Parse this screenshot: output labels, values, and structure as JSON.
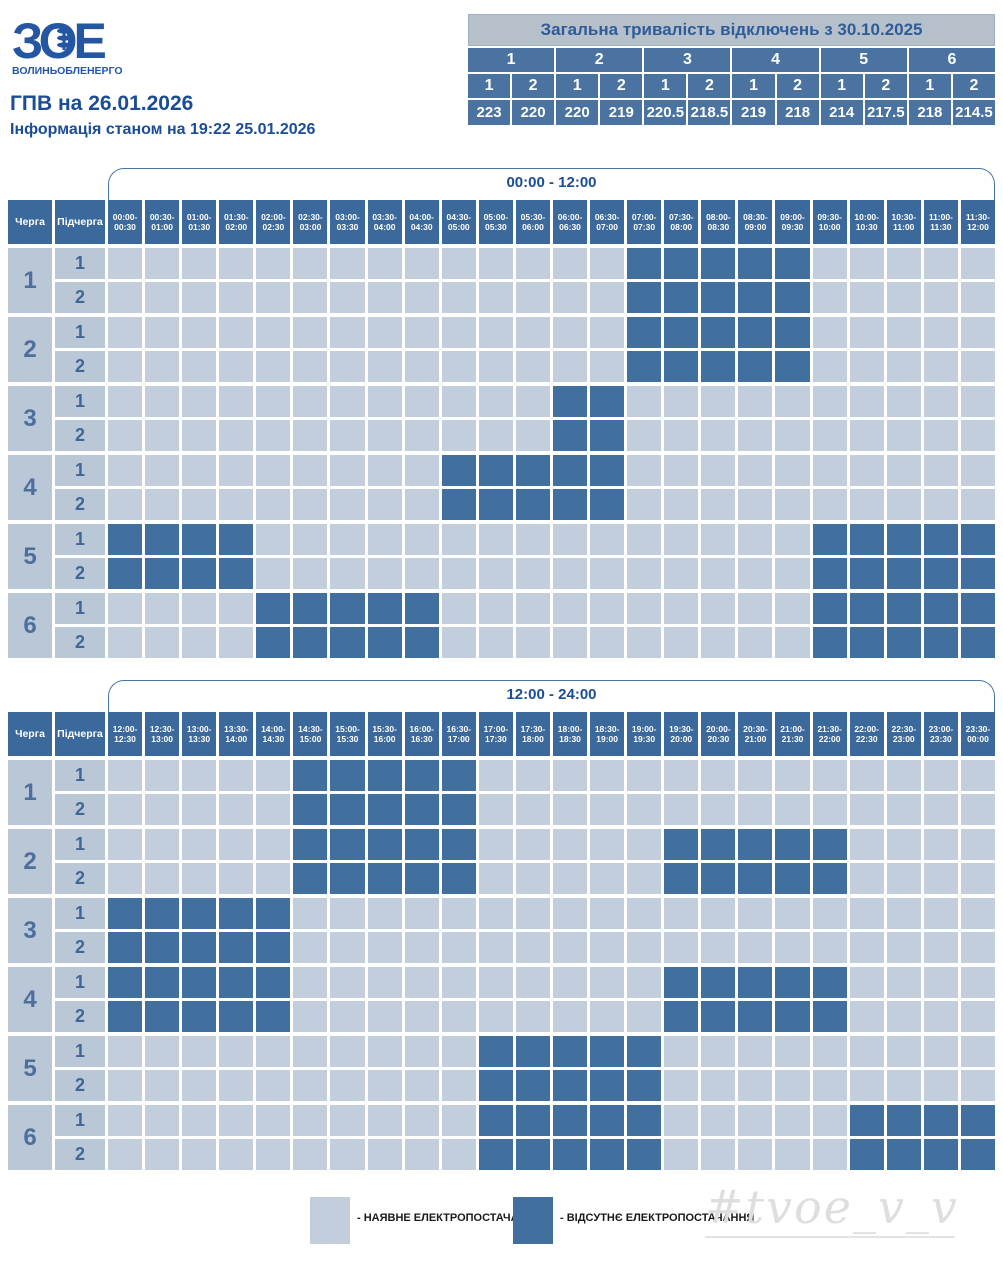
{
  "logo": {
    "brand": "ЗОЕ",
    "company": "ВОЛИНЬОБЛЕНЕРГО"
  },
  "header": {
    "title": "ГПВ на 26.01.2026",
    "subtitle": "Інформація станом на 19:22 25.01.2026"
  },
  "summary": {
    "title": "Загальна тривалість відключень з 30.10.2025",
    "groups": [
      {
        "label": "1",
        "subs": [
          {
            "label": "1",
            "value": "223"
          },
          {
            "label": "2",
            "value": "220"
          }
        ]
      },
      {
        "label": "2",
        "subs": [
          {
            "label": "1",
            "value": "220"
          },
          {
            "label": "2",
            "value": "219"
          }
        ]
      },
      {
        "label": "3",
        "subs": [
          {
            "label": "1",
            "value": "220.5"
          },
          {
            "label": "2",
            "value": "218.5"
          }
        ]
      },
      {
        "label": "4",
        "subs": [
          {
            "label": "1",
            "value": "219"
          },
          {
            "label": "2",
            "value": "218"
          }
        ]
      },
      {
        "label": "5",
        "subs": [
          {
            "label": "1",
            "value": "214"
          },
          {
            "label": "2",
            "value": "217.5"
          }
        ]
      },
      {
        "label": "6",
        "subs": [
          {
            "label": "1",
            "value": "218"
          },
          {
            "label": "2",
            "value": "214.5"
          }
        ]
      }
    ]
  },
  "schedule": {
    "queue_header": "Черга",
    "subqueue_header": "Підчерга",
    "tables": [
      {
        "title": "00:00 - 12:00",
        "slots": [
          "00:00-00:30",
          "00:30-01:00",
          "01:00-01:30",
          "01:30-02:00",
          "02:00-02:30",
          "02:30-03:00",
          "03:00-03:30",
          "03:30-04:00",
          "04:00-04:30",
          "04:30-05:00",
          "05:00-05:30",
          "05:30-06:00",
          "06:00-06:30",
          "06:30-07:00",
          "07:00-07:30",
          "07:30-08:00",
          "08:00-08:30",
          "08:30-09:00",
          "09:00-09:30",
          "09:30-10:00",
          "10:00-10:30",
          "10:30-11:00",
          "11:00-11:30",
          "11:30-12:00"
        ],
        "queues": [
          {
            "label": "1",
            "rows": [
              {
                "label": "1",
                "off": [
                  [
                    14,
                    18
                  ]
                ]
              },
              {
                "label": "2",
                "off": [
                  [
                    14,
                    18
                  ]
                ]
              }
            ]
          },
          {
            "label": "2",
            "rows": [
              {
                "label": "1",
                "off": [
                  [
                    14,
                    18
                  ]
                ]
              },
              {
                "label": "2",
                "off": [
                  [
                    14,
                    18
                  ]
                ]
              }
            ]
          },
          {
            "label": "3",
            "rows": [
              {
                "label": "1",
                "off": [
                  [
                    12,
                    13
                  ]
                ]
              },
              {
                "label": "2",
                "off": [
                  [
                    12,
                    13
                  ]
                ]
              }
            ]
          },
          {
            "label": "4",
            "rows": [
              {
                "label": "1",
                "off": [
                  [
                    9,
                    13
                  ]
                ]
              },
              {
                "label": "2",
                "off": [
                  [
                    9,
                    13
                  ]
                ]
              }
            ]
          },
          {
            "label": "5",
            "rows": [
              {
                "label": "1",
                "off": [
                  [
                    0,
                    3
                  ],
                  [
                    19,
                    23
                  ]
                ]
              },
              {
                "label": "2",
                "off": [
                  [
                    0,
                    3
                  ],
                  [
                    19,
                    23
                  ]
                ]
              }
            ]
          },
          {
            "label": "6",
            "rows": [
              {
                "label": "1",
                "off": [
                  [
                    4,
                    8
                  ],
                  [
                    19,
                    23
                  ]
                ]
              },
              {
                "label": "2",
                "off": [
                  [
                    4,
                    8
                  ],
                  [
                    19,
                    23
                  ]
                ]
              }
            ]
          }
        ]
      },
      {
        "title": "12:00 - 24:00",
        "slots": [
          "12:00-12:30",
          "12:30-13:00",
          "13:00-13:30",
          "13:30-14:00",
          "14:00-14:30",
          "14:30-15:00",
          "15:00-15:30",
          "15:30-16:00",
          "16:00-16:30",
          "16:30-17:00",
          "17:00-17:30",
          "17:30-18:00",
          "18:00-18:30",
          "18:30-19:00",
          "19:00-19:30",
          "19:30-20:00",
          "20:00-20:30",
          "20:30-21:00",
          "21:00-21:30",
          "21:30-22:00",
          "22:00-22:30",
          "22:30-23:00",
          "23:00-23:30",
          "23:30-00:00"
        ],
        "queues": [
          {
            "label": "1",
            "rows": [
              {
                "label": "1",
                "off": [
                  [
                    5,
                    9
                  ]
                ]
              },
              {
                "label": "2",
                "off": [
                  [
                    5,
                    9
                  ]
                ]
              }
            ]
          },
          {
            "label": "2",
            "rows": [
              {
                "label": "1",
                "off": [
                  [
                    5,
                    9
                  ],
                  [
                    15,
                    19
                  ]
                ]
              },
              {
                "label": "2",
                "off": [
                  [
                    5,
                    9
                  ],
                  [
                    15,
                    19
                  ]
                ]
              }
            ]
          },
          {
            "label": "3",
            "rows": [
              {
                "label": "1",
                "off": [
                  [
                    0,
                    4
                  ]
                ]
              },
              {
                "label": "2",
                "off": [
                  [
                    0,
                    4
                  ]
                ]
              }
            ]
          },
          {
            "label": "4",
            "rows": [
              {
                "label": "1",
                "off": [
                  [
                    0,
                    4
                  ],
                  [
                    15,
                    19
                  ]
                ]
              },
              {
                "label": "2",
                "off": [
                  [
                    0,
                    4
                  ],
                  [
                    15,
                    19
                  ]
                ]
              }
            ]
          },
          {
            "label": "5",
            "rows": [
              {
                "label": "1",
                "off": [
                  [
                    10,
                    14
                  ]
                ]
              },
              {
                "label": "2",
                "off": [
                  [
                    10,
                    14
                  ]
                ]
              }
            ]
          },
          {
            "label": "6",
            "rows": [
              {
                "label": "1",
                "off": [
                  [
                    10,
                    14
                  ],
                  [
                    20,
                    23
                  ]
                ]
              },
              {
                "label": "2",
                "off": [
                  [
                    10,
                    14
                  ],
                  [
                    20,
                    23
                  ]
                ]
              }
            ]
          }
        ]
      }
    ]
  },
  "legend": {
    "on_label": "- НАЯВНЕ ЕЛЕКТРОПОСТАЧАННЯ",
    "off_label": "- ВІДСУТНЄ ЕЛЕКТРОПОСТАЧАННЯ"
  },
  "watermark": "#tvoe_v_v",
  "colors": {
    "power_on": "#c2cedc",
    "power_off": "#41709e",
    "header_blue": "#3c699b",
    "summary_blue": "#4a73a1",
    "summary_title_bg": "#b6c0cb",
    "title_text": "#1b4d96",
    "brand_blue": "#2456a4"
  }
}
